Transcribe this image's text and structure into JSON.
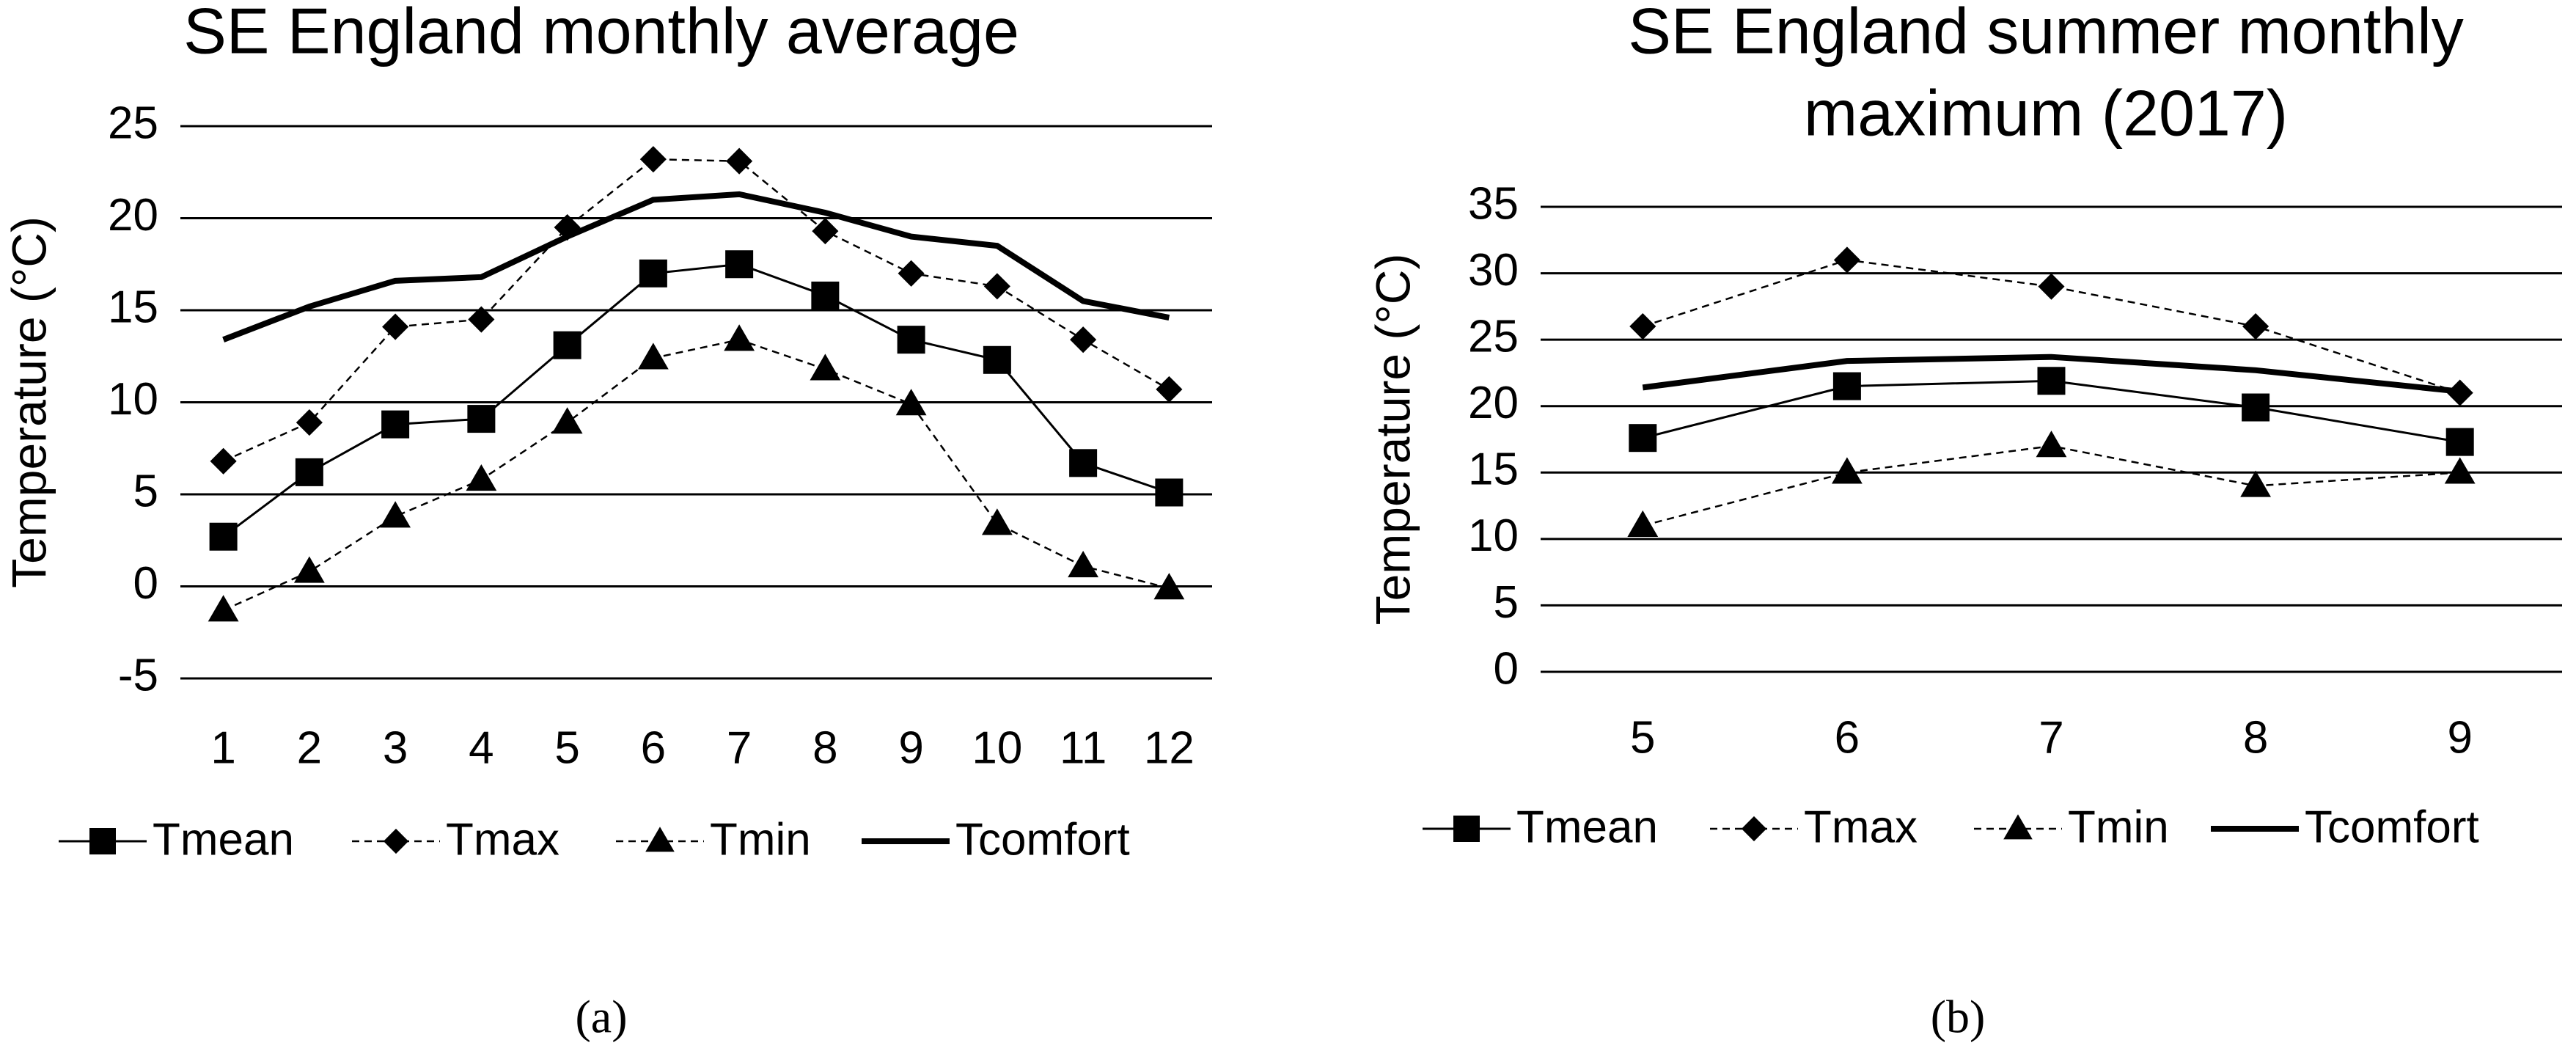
{
  "chart_data": [
    {
      "type": "line",
      "title": [
        "SE England monthly average"
      ],
      "y_label": "Temperature (°C)",
      "caption": "(a)",
      "categories": [
        "1",
        "2",
        "3",
        "4",
        "5",
        "6",
        "7",
        "8",
        "9",
        "10",
        "11",
        "12"
      ],
      "ylim": [
        -5,
        25
      ],
      "yticks": [
        -5,
        0,
        5,
        10,
        15,
        20,
        25
      ],
      "grid": true,
      "series": [
        {
          "name": "Tmean",
          "color": "#000000",
          "marker": "square",
          "line_style": "solid",
          "line_width": 3,
          "values": [
            2.7,
            6.2,
            8.8,
            9.1,
            13.1,
            17.0,
            17.5,
            15.8,
            13.4,
            12.3,
            6.7,
            5.1
          ]
        },
        {
          "name": "Tmax",
          "color": "#000000",
          "marker": "diamond",
          "line_style": "dashed",
          "line_width": 2.5,
          "values": [
            6.8,
            8.9,
            14.1,
            14.5,
            19.5,
            23.2,
            23.1,
            19.3,
            17.0,
            16.3,
            13.4,
            10.7
          ]
        },
        {
          "name": "Tmin",
          "color": "#000000",
          "marker": "triangle",
          "line_style": "dashed",
          "line_width": 2.5,
          "values": [
            -1.3,
            0.8,
            3.8,
            5.8,
            8.9,
            12.4,
            13.4,
            11.8,
            9.9,
            3.4,
            1.1,
            -0.1
          ]
        },
        {
          "name": "Tcomfort",
          "color": "#000000",
          "marker": "none",
          "line_style": "solid",
          "line_width": 8,
          "values": [
            13.4,
            15.2,
            16.6,
            16.8,
            19.0,
            21.0,
            21.3,
            20.3,
            19.0,
            18.5,
            15.5,
            14.6
          ]
        }
      ]
    },
    {
      "type": "line",
      "title": [
        "SE England summer monthly",
        "maximum (2017)"
      ],
      "y_label": "Temperature (°C)",
      "caption": "(b)",
      "categories": [
        "5",
        "6",
        "7",
        "8",
        "9"
      ],
      "ylim": [
        0,
        35
      ],
      "yticks": [
        0,
        5,
        10,
        15,
        20,
        25,
        30,
        35
      ],
      "grid": true,
      "series": [
        {
          "name": "Tmean",
          "color": "#000000",
          "marker": "square",
          "line_style": "solid",
          "line_width": 3,
          "values": [
            17.6,
            21.5,
            21.9,
            19.9,
            17.3
          ]
        },
        {
          "name": "Tmax",
          "color": "#000000",
          "marker": "diamond",
          "line_style": "dashed",
          "line_width": 2.5,
          "values": [
            26,
            31,
            29,
            26,
            21
          ]
        },
        {
          "name": "Tmin",
          "color": "#000000",
          "marker": "triangle",
          "line_style": "dashed",
          "line_width": 2.5,
          "values": [
            11,
            15,
            17,
            14,
            15
          ]
        },
        {
          "name": "Tcomfort",
          "color": "#000000",
          "marker": "none",
          "line_style": "solid",
          "line_width": 8,
          "values": [
            21.4,
            23.4,
            23.7,
            22.7,
            21.1
          ]
        }
      ]
    }
  ]
}
